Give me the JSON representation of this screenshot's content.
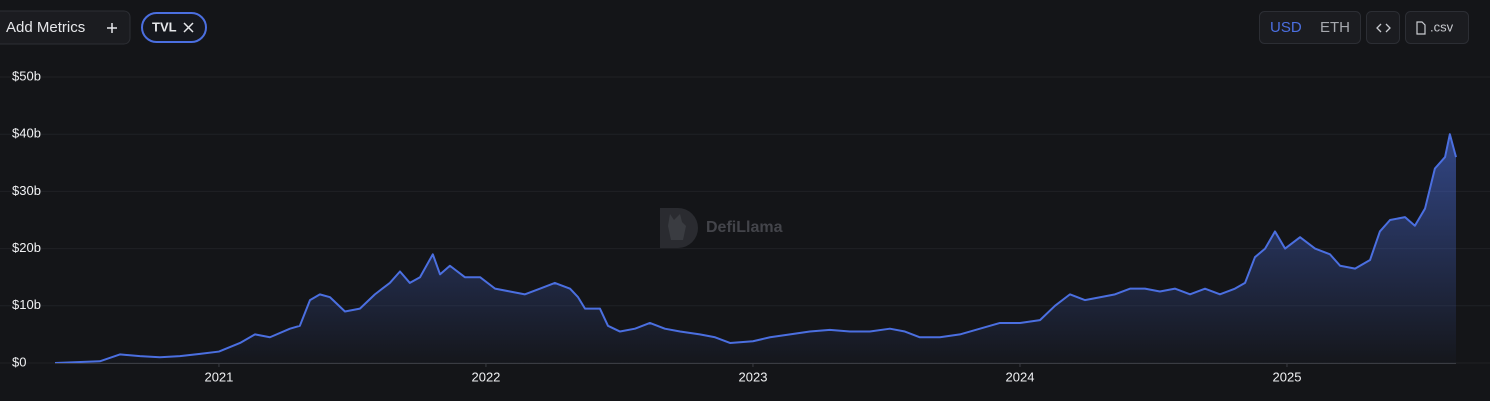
{
  "toolbar": {
    "add_metrics": "Add Metrics",
    "currencies": [
      "USD",
      "ETH"
    ],
    "csv": ".csv"
  },
  "chart_data": {
    "type": "line",
    "watermark": "DefiLlama",
    "xlim": [
      2020.386,
      2025.633
    ],
    "xticks": [
      2021,
      2022,
      2023,
      2024,
      2025
    ],
    "ylim": [
      0,
      50
    ],
    "yticks": [
      {
        "value": 0,
        "label": "$0"
      },
      {
        "value": 10,
        "label": "$10b"
      },
      {
        "value": 20,
        "label": "$20b"
      },
      {
        "value": 30,
        "label": "$30b"
      },
      {
        "value": 40,
        "label": "$40b"
      },
      {
        "value": 50,
        "label": "$50b"
      }
    ],
    "grid": true,
    "x": [
      2020.386,
      2020.554,
      2020.629,
      2020.704,
      2020.779,
      2020.854,
      2020.929,
      2021.0,
      2021.079,
      2021.135,
      2021.191,
      2021.266,
      2021.303,
      2021.341,
      2021.378,
      2021.416,
      2021.472,
      2021.528,
      2021.584,
      2021.64,
      2021.678,
      2021.715,
      2021.753,
      2021.801,
      2021.828,
      2021.865,
      2021.921,
      2021.978,
      2022.034,
      2022.09,
      2022.146,
      2022.202,
      2022.258,
      2022.315,
      2022.345,
      2022.371,
      2022.427,
      2022.457,
      2022.502,
      2022.558,
      2022.614,
      2022.67,
      2022.727,
      2022.801,
      2022.858,
      2022.914,
      2023.0,
      2023.064,
      2023.139,
      2023.213,
      2023.288,
      2023.363,
      2023.438,
      2023.513,
      2023.569,
      2023.625,
      2023.7,
      2023.775,
      2023.85,
      2023.925,
      2024.0,
      2024.075,
      2024.131,
      2024.187,
      2024.243,
      2024.3,
      2024.356,
      2024.412,
      2024.468,
      2024.524,
      2024.581,
      2024.637,
      2024.693,
      2024.749,
      2024.805,
      2024.843,
      2024.88,
      2024.918,
      2024.955,
      2024.993,
      2025.049,
      2025.105,
      2025.161,
      2025.199,
      2025.255,
      2025.311,
      2025.348,
      2025.386,
      2025.442,
      2025.479,
      2025.517,
      2025.554,
      2025.573,
      2025.592,
      2025.61,
      2025.633
    ],
    "series": [
      {
        "name": "TVL",
        "color": "#4b6fe0",
        "values": [
          0,
          0.3,
          1.5,
          1.2,
          1.0,
          1.2,
          1.6,
          2.0,
          3.5,
          5,
          4.5,
          6,
          6.5,
          11,
          12,
          11.5,
          9,
          9.5,
          12,
          14,
          16,
          14,
          15,
          19,
          15.5,
          17,
          15,
          15,
          13,
          12.5,
          12,
          13,
          14,
          13,
          11.5,
          9.5,
          9.5,
          6.5,
          5.5,
          6,
          7,
          6,
          5.5,
          5,
          4.5,
          3.5,
          3.8,
          4.5,
          5,
          5.5,
          5.8,
          5.5,
          5.5,
          6,
          5.5,
          4.5,
          4.5,
          5,
          6,
          7,
          7,
          7.5,
          10,
          12,
          11,
          11.5,
          12,
          13,
          13,
          12.5,
          13,
          12,
          13,
          12,
          13,
          14,
          18.5,
          20,
          23,
          20,
          22,
          20,
          19,
          17,
          16.5,
          18,
          23,
          25,
          25.5,
          24,
          27,
          34,
          35,
          36,
          40,
          36
        ]
      }
    ]
  }
}
